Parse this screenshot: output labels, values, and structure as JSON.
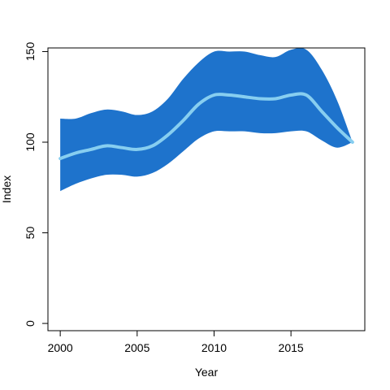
{
  "chart_data": {
    "type": "area",
    "title": "",
    "xlabel": "Year",
    "ylabel": "Index",
    "xlim": [
      1999.2,
      2019.8
    ],
    "ylim": [
      -4,
      152
    ],
    "x_ticks": [
      2000,
      2005,
      2010,
      2015
    ],
    "y_ticks": [
      0,
      50,
      100,
      150
    ],
    "grid": false,
    "legend": "none",
    "colors": {
      "band": "#1e73cc",
      "line": "#87cef0",
      "axis": "#000000"
    },
    "x": [
      2000,
      2001,
      2002,
      2003,
      2004,
      2005,
      2006,
      2007,
      2008,
      2009,
      2010,
      2011,
      2012,
      2013,
      2014,
      2015,
      2016,
      2017,
      2018,
      2019
    ],
    "series": [
      {
        "role": "upper",
        "values": [
          113,
          113,
          116,
          118,
          117,
          115,
          117,
          124,
          135,
          144,
          150,
          150,
          150,
          148,
          147,
          151,
          151,
          140,
          123,
          100
        ]
      },
      {
        "role": "center",
        "values": [
          91,
          94,
          96,
          98,
          97,
          96,
          98,
          104,
          112,
          121,
          126,
          126,
          125,
          124,
          124,
          126,
          126,
          117,
          108,
          100
        ]
      },
      {
        "role": "lower",
        "values": [
          73,
          77,
          80,
          82,
          82,
          81,
          83,
          88,
          95,
          102,
          106,
          106,
          106,
          105,
          105,
          106,
          106,
          101,
          97,
          100
        ]
      }
    ]
  }
}
